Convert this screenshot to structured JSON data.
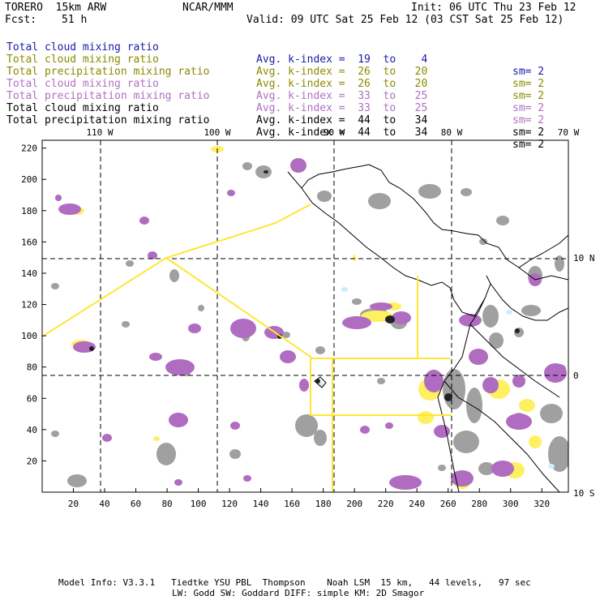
{
  "header": {
    "model": "TORERO  15km ARW",
    "center": "NCAR/MMM",
    "init": "Init: 06 UTC Thu 23 Feb 12",
    "fcst_label": "Fcst:",
    "fcst_value": "51 h",
    "valid": "Valid: 09 UTC Sat 25 Feb 12 (03 CST Sat 25 Feb 12)"
  },
  "legend": [
    {
      "field": "Total cloud mixing ratio",
      "index": "Avg. k-index =  19  to    4",
      "sm": "sm= 2",
      "color": "#1a1aa8"
    },
    {
      "field": "Total cloud mixing ratio",
      "index": "Avg. k-index =  26  to   20",
      "sm": "sm= 2",
      "color": "#8a8a00"
    },
    {
      "field": "Total precipitation mixing ratio",
      "index": "Avg. k-index =  26  to   20",
      "sm": "sm= 2",
      "color": "#8a8a00"
    },
    {
      "field": "Total cloud mixing ratio",
      "index": "Avg. k-index =  33  to   25",
      "sm": "sm= 2",
      "color": "#b070c0"
    },
    {
      "field": "Total precipitation mixing ratio",
      "index": "Avg. k-index =  33  to   25",
      "sm": "sm= 2",
      "color": "#b070c0"
    },
    {
      "field": "Total cloud mixing ratio",
      "index": "Avg. k-index =  44  to   34",
      "sm": "sm= 2",
      "color": "#000000"
    },
    {
      "field": "Total precipitation mixing ratio",
      "index": "Avg. k-index =  44  to   34",
      "sm": "sm= 2",
      "color": "#000000"
    }
  ],
  "map": {
    "bottom_ticks": [
      "20",
      "40",
      "60",
      "80",
      "100",
      "120",
      "140",
      "160",
      "180",
      "200",
      "220",
      "240",
      "260",
      "280",
      "300",
      "320"
    ],
    "left_ticks": [
      "20",
      "40",
      "60",
      "80",
      "100",
      "120",
      "140",
      "160",
      "180",
      "200",
      "220"
    ],
    "top_lon_labels": [
      "110 W",
      "100 W",
      "90 W",
      "80 W",
      "70 W"
    ],
    "right_lat_labels": [
      "10 N",
      "0",
      "10 S"
    ],
    "colors": {
      "gray": "#a0a0a0",
      "purple": "#b06cc0",
      "yellow": "#fff060",
      "black": "#222222",
      "cyan": "#c8f0f8",
      "route": "#ffe633"
    }
  },
  "footer": {
    "line1": "Model Info: V3.3.1   Tiedtke YSU PBL  Thompson    Noah LSM  15 km,   44 levels,   97 sec",
    "line2": "LW: Godd SW: Goddard DIFF: simple KM: 2D Smagor"
  }
}
